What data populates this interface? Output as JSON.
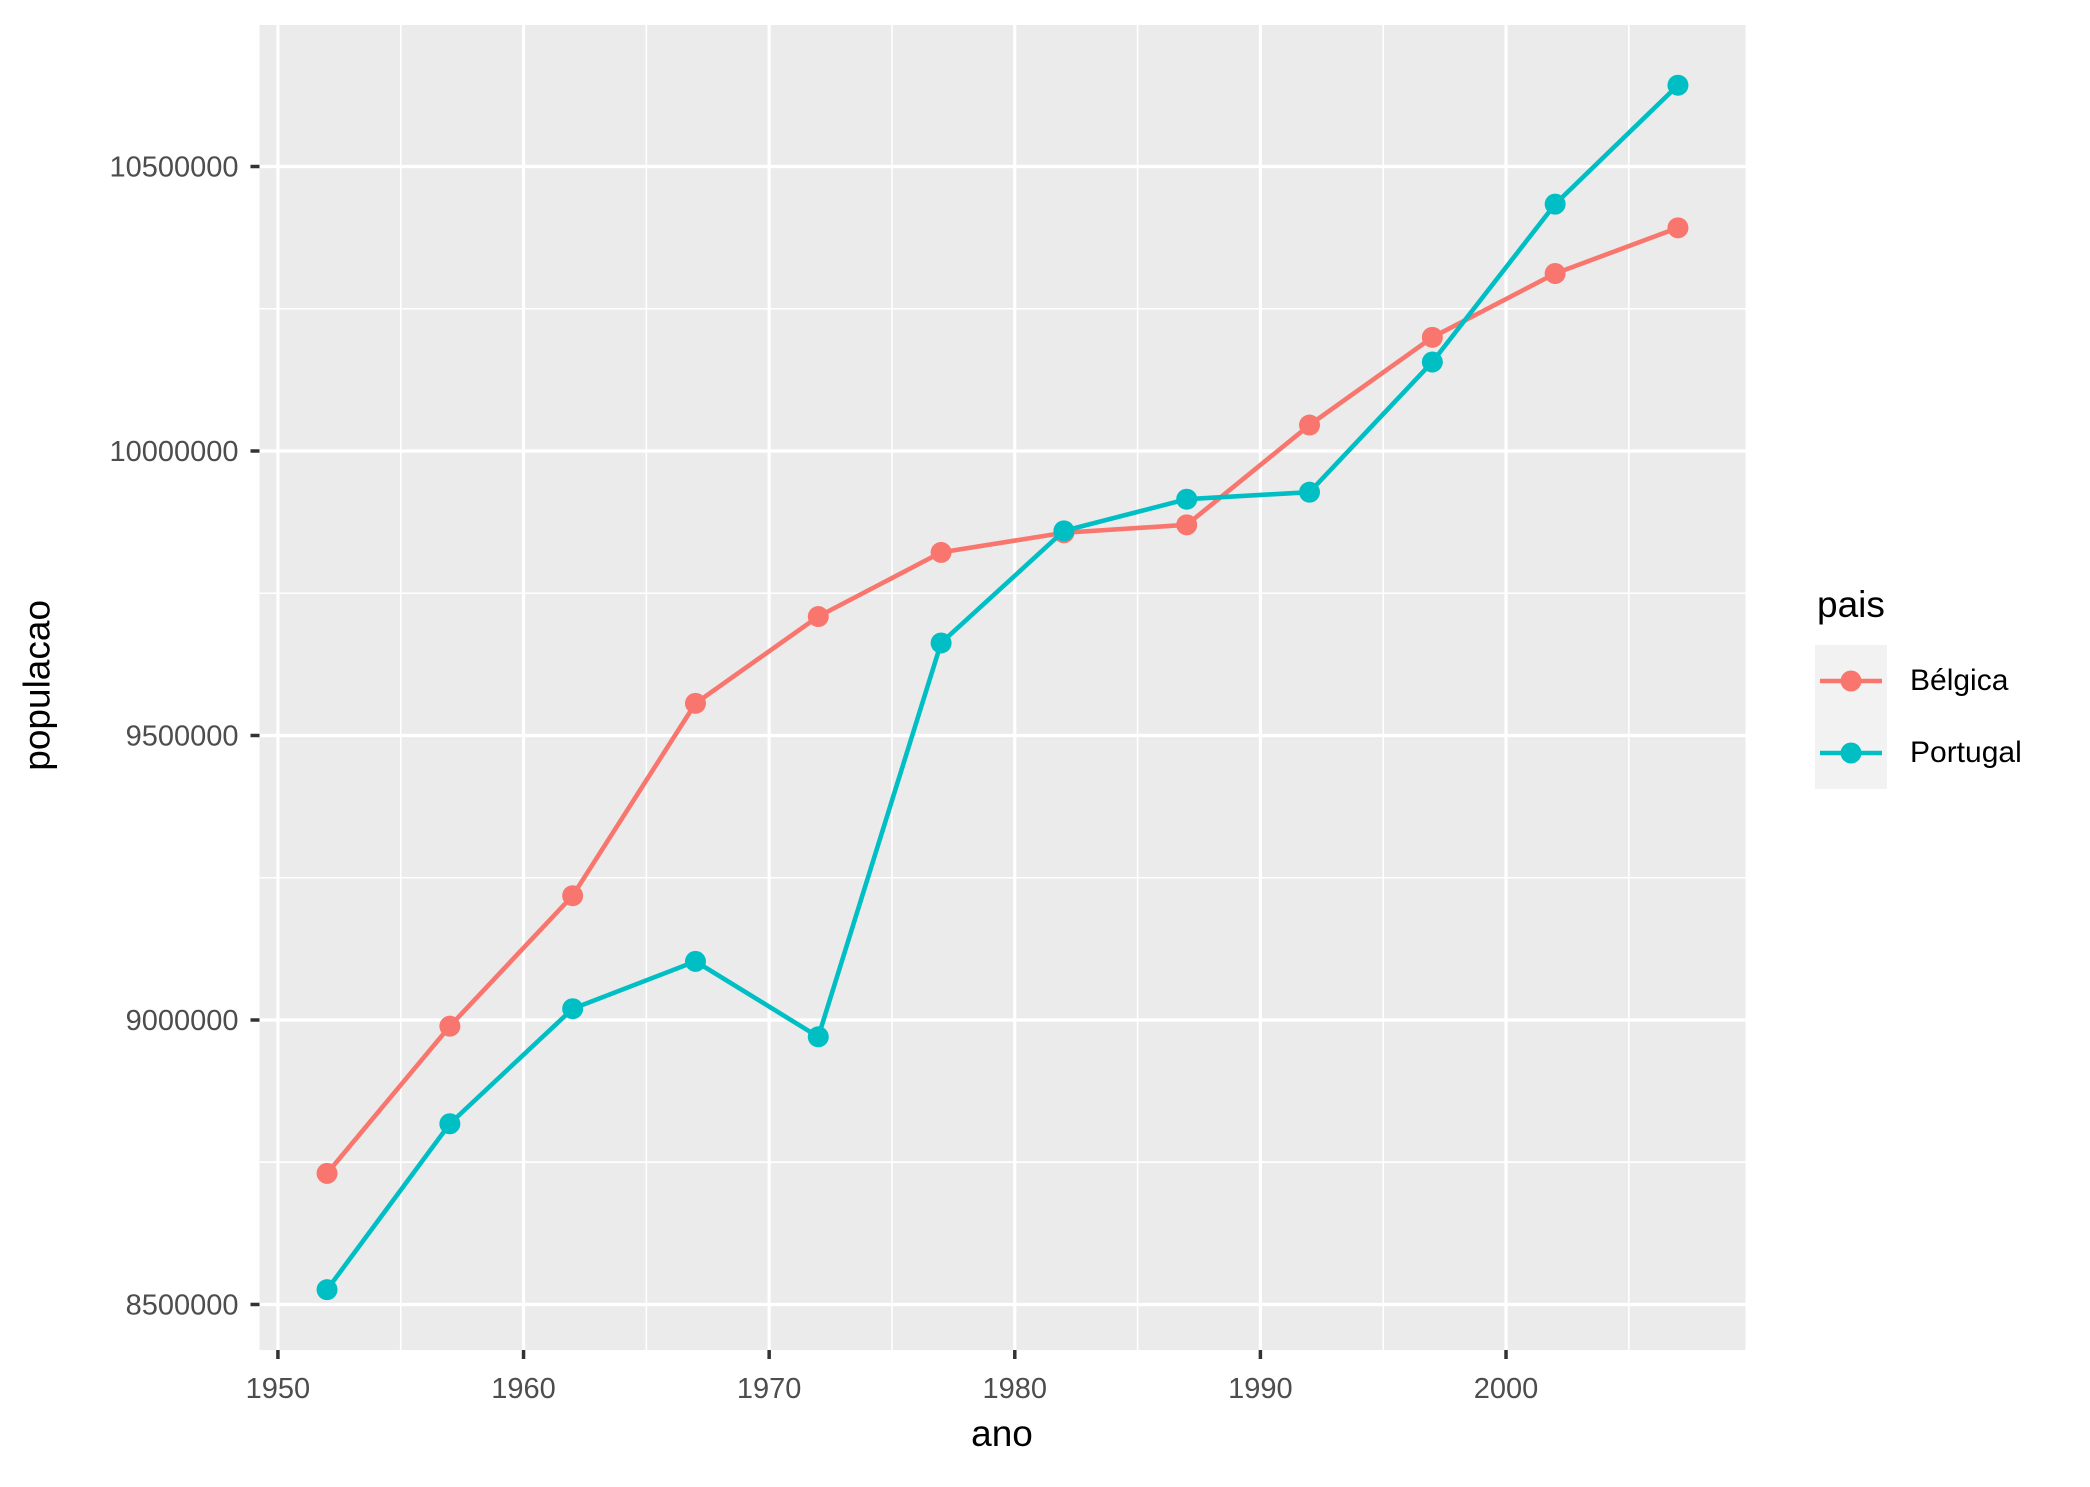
{
  "chart_data": {
    "type": "line",
    "title": "",
    "xlabel": "ano",
    "ylabel": "populacao",
    "legend_title": "pais",
    "legend_position": "right",
    "grid": true,
    "x": [
      1952,
      1957,
      1962,
      1967,
      1972,
      1977,
      1982,
      1987,
      1992,
      1997,
      2002,
      2007
    ],
    "series": [
      {
        "name": "Bélgica",
        "color": "#F8766D",
        "values": [
          8730405,
          8989111,
          9218400,
          9556500,
          9709100,
          9821800,
          9856303,
          9870200,
          10045622,
          10199787,
          10311970,
          10392226
        ]
      },
      {
        "name": "Portugal",
        "color": "#00BFC4",
        "values": [
          8526050,
          8817650,
          9019800,
          9103000,
          8970450,
          9662600,
          9859650,
          9915289,
          9927680,
          10156415,
          10433867,
          10642836
        ]
      }
    ],
    "x_ticks": [
      1950,
      1960,
      1970,
      1980,
      1990,
      2000
    ],
    "x_minor_ticks": [
      1955,
      1965,
      1975,
      1985,
      1995,
      2005
    ],
    "y_ticks": [
      8500000,
      9000000,
      9500000,
      10000000,
      10500000
    ],
    "y_minor_ticks": [
      8750000,
      9250000,
      9750000,
      10250000
    ],
    "xlim": [
      1949.25,
      2009.75
    ],
    "ylim": [
      8420000,
      10748700
    ],
    "styles": {
      "panel_bg": "#EBEBEB",
      "grid_major": "#FFFFFF",
      "grid_minor": "#FFFFFF",
      "axis_text": "#4D4D4D",
      "tick_mark": "#333333",
      "axis_title": "#000000",
      "legend_key_bg": "#F2F2F2",
      "background": "#FFFFFF"
    }
  }
}
